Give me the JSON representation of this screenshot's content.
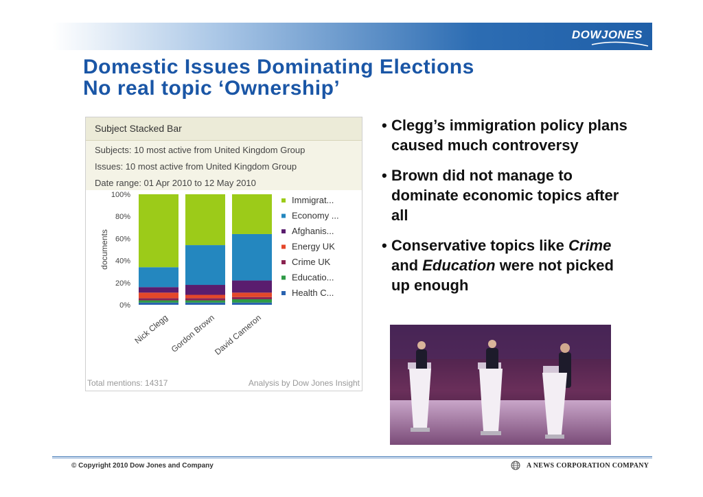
{
  "header": {
    "logo_text": "DOWJONES",
    "bar_color": "#1f5fa8"
  },
  "slide": {
    "title_line1": "Domestic Issues Dominating Elections",
    "title_line2": "No real topic ‘Ownership’",
    "title_color": "#1a56a6"
  },
  "chart_panel": {
    "header": "Subject Stacked Bar",
    "info": [
      "Subjects: 10 most active from United Kingdom Group",
      "Issues: 10 most active from United Kingdom Group",
      "Date range: 01 Apr 2010 to 12 May 2010"
    ],
    "footer_left": "Total mentions: 14317",
    "footer_right": "Analysis by Dow Jones Insight"
  },
  "chart_data": {
    "type": "bar",
    "stacked": true,
    "normalized": true,
    "ylabel": "documents",
    "ylim": [
      0,
      100
    ],
    "y_ticks": [
      "0%",
      "20%",
      "40%",
      "60%",
      "80%",
      "100%"
    ],
    "categories": [
      "Nick Clegg",
      "Gordon Brown",
      "David Cameron"
    ],
    "legend_position": "right",
    "series": [
      {
        "name": "Health C...",
        "color": "#2a63b0",
        "values": [
          2,
          2,
          2
        ]
      },
      {
        "name": "Educatio...",
        "color": "#2e9a46",
        "values": [
          2,
          2,
          3
        ]
      },
      {
        "name": "Crime UK",
        "color": "#8a2350",
        "values": [
          2,
          2,
          2
        ]
      },
      {
        "name": "Energy UK",
        "color": "#e4472a",
        "values": [
          5,
          3,
          4
        ]
      },
      {
        "name": "Afghanis...",
        "color": "#5a1d6e",
        "values": [
          5,
          9,
          11
        ]
      },
      {
        "name": "Economy ...",
        "color": "#2487bf",
        "values": [
          18,
          36,
          42
        ]
      },
      {
        "name": "Immigrat...",
        "color": "#9ccb19",
        "values": [
          66,
          46,
          36
        ]
      }
    ]
  },
  "bullets": [
    {
      "segments": [
        {
          "text": "Clegg’s immigration policy plans caused much controversy",
          "italic": false
        }
      ]
    },
    {
      "segments": [
        {
          "text": "Brown did not manage to dominate economic topics after all",
          "italic": false
        }
      ]
    },
    {
      "segments": [
        {
          "text": "Conservative topics like ",
          "italic": false
        },
        {
          "text": "Crime",
          "italic": true
        },
        {
          "text": " and ",
          "italic": false
        },
        {
          "text": "Education",
          "italic": true
        },
        {
          "text": " were not picked up enough",
          "italic": false
        }
      ]
    }
  ],
  "footer": {
    "copyright": "© Copyright 2010 Dow Jones and Company",
    "company": "A NEWS CORPORATION COMPANY"
  }
}
